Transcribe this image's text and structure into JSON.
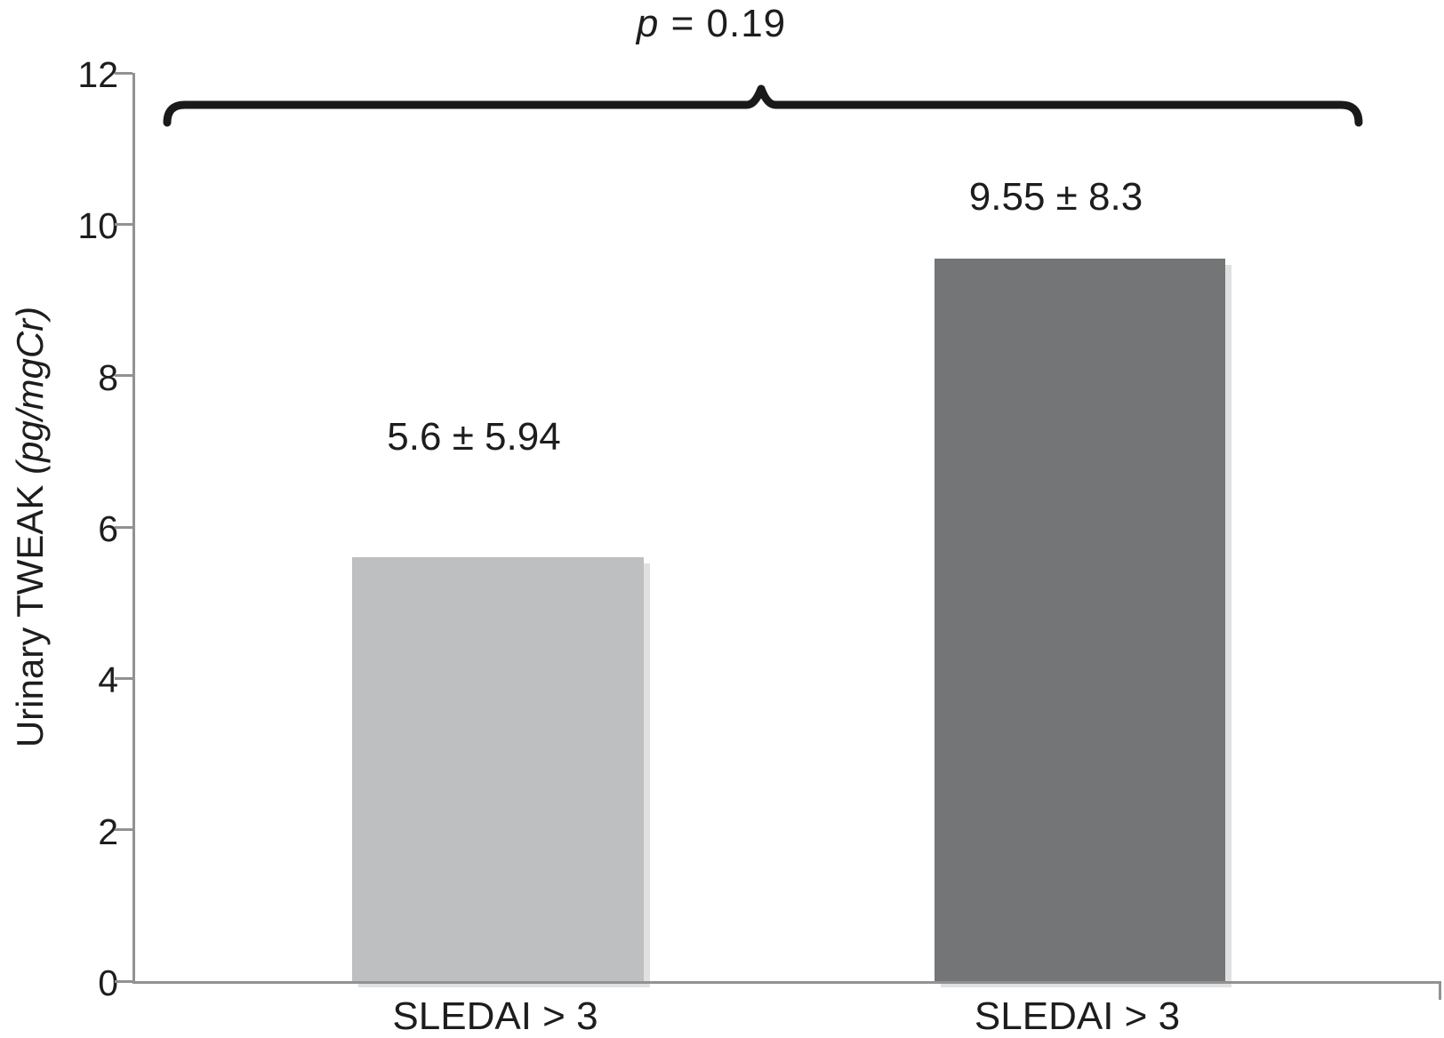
{
  "figure": {
    "annotation": {
      "p_symbol": "p",
      "p_rest": " = 0.19"
    },
    "y_axis": {
      "label_prefix": "Urinary TWEAK ",
      "label_unit_italic": "(pg/mgCr)"
    }
  },
  "chart_data": {
    "type": "bar",
    "title": "",
    "xlabel": "",
    "ylabel": "Urinary TWEAK (pg/mgCr)",
    "categories": [
      "SLEDAI > 3",
      "SLEDAI > 3"
    ],
    "values": [
      5.6,
      9.55
    ],
    "errors": [
      5.94,
      8.3
    ],
    "data_labels": [
      "5.6 ± 5.94",
      "9.55 ± 8.3"
    ],
    "annotation": "p = 0.19",
    "ylim": [
      0,
      12
    ],
    "yticks": [
      0,
      2,
      4,
      6,
      8,
      10,
      12
    ],
    "grid": false,
    "legend": false,
    "bar_colors": [
      "#bdbfc1",
      "#737577"
    ],
    "axis_color": "#909295",
    "text_color": "#1d1d1f",
    "brace_color": "#1a1a1a"
  }
}
